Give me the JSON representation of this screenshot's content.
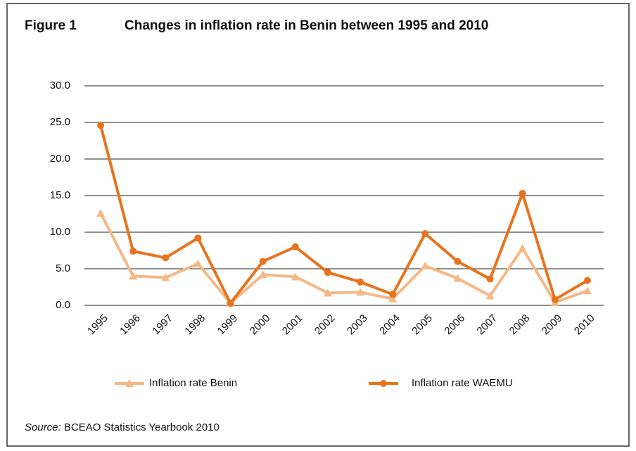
{
  "chart_data": {
    "type": "line",
    "figure_label": "Figure 1",
    "title": "Changes in inflation rate in Benin between 1995 and 2010",
    "categories": [
      "1995",
      "1996",
      "1997",
      "1998",
      "1999",
      "2000",
      "2001",
      "2002",
      "2003",
      "2004",
      "2005",
      "2006",
      "2007",
      "2008",
      "2009",
      "2010"
    ],
    "series": [
      {
        "name": "Inflation rate Benin",
        "color": "#f5b886",
        "marker": "triangle",
        "values": [
          12.6,
          4.0,
          3.8,
          5.7,
          0.3,
          4.2,
          3.9,
          1.7,
          1.8,
          0.9,
          5.4,
          3.7,
          1.3,
          7.8,
          0.4,
          2.0
        ]
      },
      {
        "name": "Inflation rate WAEMU",
        "color": "#e8731e",
        "marker": "circle",
        "values": [
          24.6,
          7.4,
          6.5,
          9.2,
          0.3,
          6.0,
          8.0,
          4.5,
          3.2,
          1.5,
          9.8,
          6.0,
          3.6,
          15.3,
          0.8,
          3.4
        ]
      }
    ],
    "ylim": [
      0,
      30
    ],
    "yticks": [
      {
        "value": 0,
        "label": "0.0"
      },
      {
        "value": 5,
        "label": "5.0"
      },
      {
        "value": 10,
        "label": "10.0"
      },
      {
        "value": 15,
        "label": "15.0"
      },
      {
        "value": 20,
        "label": "20.0"
      },
      {
        "value": 25,
        "label": "25.0"
      },
      {
        "value": 30,
        "label": "30.0"
      }
    ],
    "grid": true,
    "legend": "bottom",
    "source_label": "Source:",
    "source_text": "BCEAO Statistics Yearbook 2010"
  }
}
